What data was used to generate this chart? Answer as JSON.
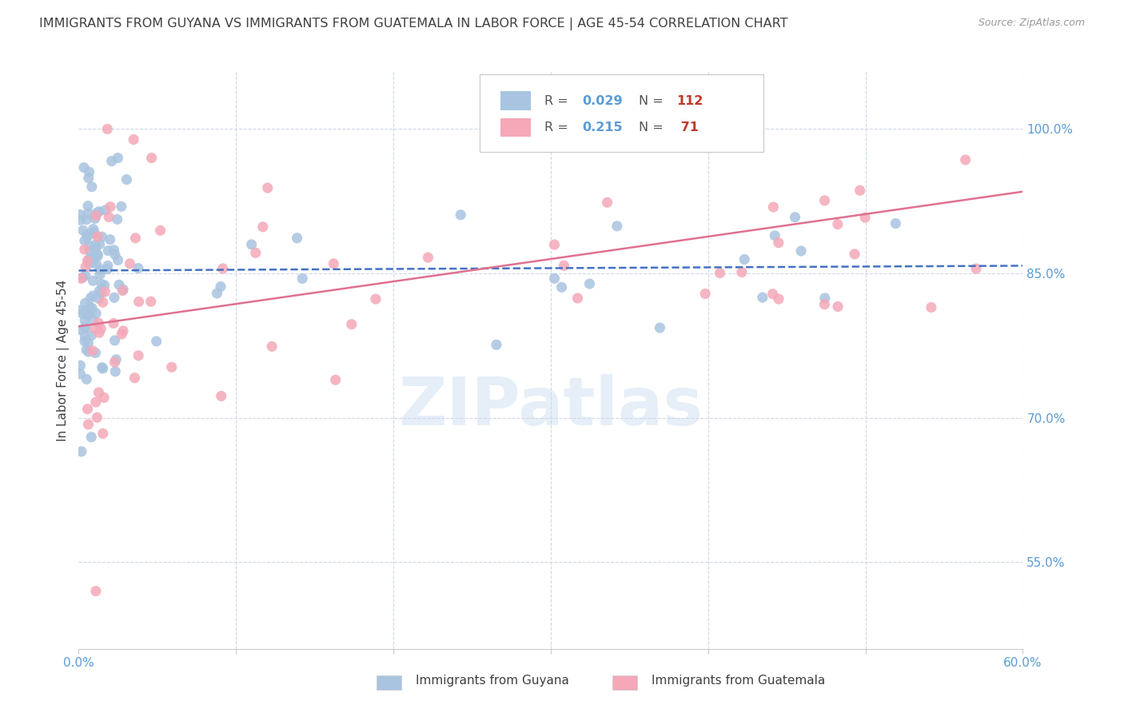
{
  "title": "IMMIGRANTS FROM GUYANA VS IMMIGRANTS FROM GUATEMALA IN LABOR FORCE | AGE 45-54 CORRELATION CHART",
  "source": "Source: ZipAtlas.com",
  "ylabel": "In Labor Force | Age 45-54",
  "right_yticks": [
    0.55,
    0.7,
    0.85,
    1.0
  ],
  "right_yticklabels": [
    "55.0%",
    "70.0%",
    "85.0%",
    "100.0%"
  ],
  "xlim": [
    0.0,
    0.6
  ],
  "ylim": [
    0.46,
    1.06
  ],
  "xtick_positions": [
    0.0,
    0.1,
    0.2,
    0.3,
    0.4,
    0.5,
    0.6
  ],
  "xticklabels": [
    "0.0%",
    "",
    "",
    "",
    "",
    "",
    "60.0%"
  ],
  "watermark": "ZIPatlas",
  "blue_color": "#a8c4e0",
  "pink_color": "#f4a8b8",
  "blue_line_color": "#4472c4",
  "pink_line_color": "#e07090",
  "title_color": "#404040",
  "axis_color": "#5b9bd5",
  "legend_R_color": "#5b9bd5",
  "legend_N_color": "#c0392b",
  "grid_color": "#d0d8e8",
  "background_color": "#ffffff",
  "R_guyana": 0.029,
  "N_guyana": 112,
  "R_guatemala": 0.215,
  "N_guatemala": 71,
  "guyana_trend_x": [
    0.0,
    0.6
  ],
  "guyana_trend_y": [
    0.853,
    0.858
  ],
  "guatemala_trend_x": [
    0.0,
    0.6
  ],
  "guatemala_trend_y": [
    0.795,
    0.935
  ]
}
